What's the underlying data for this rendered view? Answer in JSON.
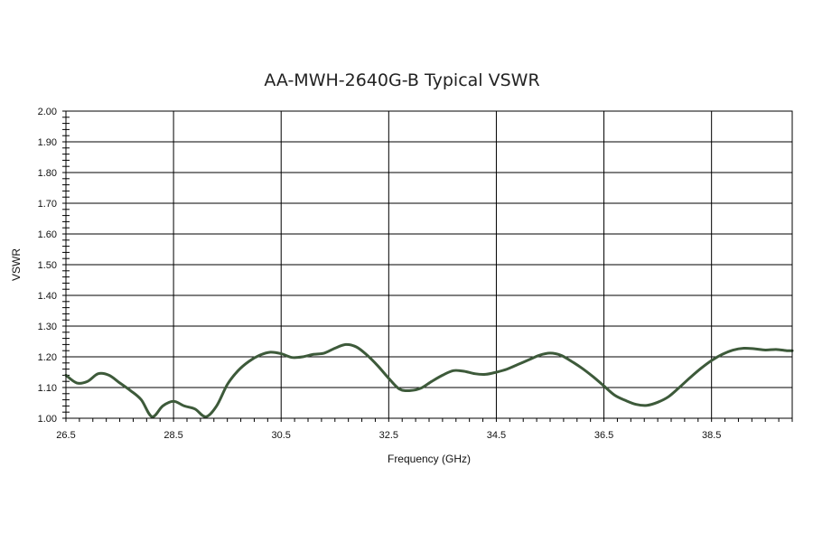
{
  "chart_data": {
    "type": "line",
    "title": "AA-MWH-2640G-B Typical VSWR",
    "xlabel": "Frequency (GHz)",
    "ylabel": "VSWR",
    "xlim": [
      26.5,
      40.0
    ],
    "ylim": [
      1.0,
      2.0
    ],
    "x_ticks": [
      26.5,
      28.5,
      30.5,
      32.5,
      34.5,
      36.5,
      38.5
    ],
    "x_tick_labels": [
      "26.5",
      "28.5",
      "30.5",
      "32.5",
      "34.5",
      "36.5",
      "38.5"
    ],
    "y_ticks": [
      1.0,
      1.1,
      1.2,
      1.3,
      1.4,
      1.5,
      1.6,
      1.7,
      1.8,
      1.9,
      2.0
    ],
    "y_tick_labels": [
      "1.00",
      "1.10",
      "1.20",
      "1.30",
      "1.40",
      "1.50",
      "1.60",
      "1.70",
      "1.80",
      "1.90",
      "2.00"
    ],
    "grid": true,
    "legend": "none",
    "series": [
      {
        "color": "#3d5a3a",
        "x": [
          26.5,
          26.7,
          26.9,
          27.1,
          27.3,
          27.5,
          27.7,
          27.9,
          28.1,
          28.3,
          28.5,
          28.7,
          28.9,
          29.1,
          29.3,
          29.5,
          29.7,
          29.9,
          30.1,
          30.3,
          30.5,
          30.7,
          30.9,
          31.1,
          31.3,
          31.5,
          31.7,
          31.9,
          32.1,
          32.3,
          32.5,
          32.7,
          32.9,
          33.1,
          33.3,
          33.5,
          33.7,
          33.9,
          34.1,
          34.3,
          34.5,
          34.7,
          34.9,
          35.1,
          35.3,
          35.5,
          35.7,
          35.9,
          36.1,
          36.3,
          36.5,
          36.7,
          36.9,
          37.1,
          37.3,
          37.5,
          37.7,
          37.9,
          38.1,
          38.3,
          38.5,
          38.7,
          38.9,
          39.1,
          39.3,
          39.5,
          39.7,
          39.9,
          40.0
        ],
        "y": [
          1.14,
          1.115,
          1.12,
          1.145,
          1.14,
          1.115,
          1.09,
          1.06,
          1.005,
          1.04,
          1.055,
          1.04,
          1.03,
          1.005,
          1.04,
          1.11,
          1.155,
          1.185,
          1.205,
          1.215,
          1.21,
          1.198,
          1.2,
          1.208,
          1.212,
          1.228,
          1.24,
          1.232,
          1.205,
          1.17,
          1.13,
          1.095,
          1.09,
          1.098,
          1.12,
          1.14,
          1.155,
          1.153,
          1.145,
          1.143,
          1.15,
          1.16,
          1.175,
          1.19,
          1.205,
          1.212,
          1.205,
          1.185,
          1.162,
          1.135,
          1.105,
          1.075,
          1.058,
          1.045,
          1.042,
          1.052,
          1.07,
          1.1,
          1.132,
          1.162,
          1.188,
          1.208,
          1.222,
          1.228,
          1.226,
          1.222,
          1.224,
          1.22,
          1.22
        ]
      }
    ]
  }
}
